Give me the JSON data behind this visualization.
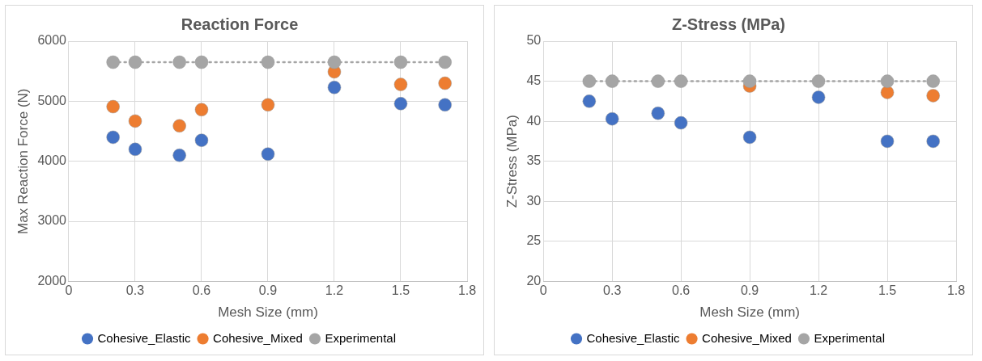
{
  "chart_data": [
    {
      "type": "scatter",
      "title": "Reaction Force",
      "xlabel": "Mesh Size (mm)",
      "ylabel": "Max Reaction Force (N)",
      "x": [
        0.2,
        0.3,
        0.5,
        0.6,
        0.9,
        1.2,
        1.5,
        1.7
      ],
      "xlim": [
        0,
        1.8
      ],
      "xticks": [
        0,
        0.3,
        0.6,
        0.9,
        1.2,
        1.5,
        1.8
      ],
      "ylim": [
        2000,
        6000
      ],
      "yticks": [
        2000,
        3000,
        4000,
        5000,
        6000
      ],
      "grid": true,
      "legend": "bottom",
      "marker": "circle",
      "series": [
        {
          "name": "Cohesive_Elastic",
          "color": "#4472c4",
          "values": [
            4400,
            4200,
            4100,
            4350,
            4120,
            5230,
            4960,
            4940
          ]
        },
        {
          "name": "Cohesive_Mixed",
          "color": "#ed7d31",
          "values": [
            4910,
            4670,
            4590,
            4860,
            4940,
            5490,
            5280,
            5300
          ]
        },
        {
          "name": "Experimental",
          "color": "#a5a5a5",
          "type": "line",
          "line_style": "dotted",
          "values": [
            5650,
            5650,
            5650,
            5650,
            5650,
            5650,
            5650,
            5650
          ]
        }
      ]
    },
    {
      "type": "scatter",
      "title": "Z-Stress (MPa)",
      "xlabel": "Mesh Size (mm)",
      "ylabel": "Z-Stress (MPa)",
      "x": [
        0.2,
        0.3,
        0.5,
        0.6,
        0.9,
        1.2,
        1.5,
        1.7
      ],
      "xlim": [
        0,
        1.8
      ],
      "xticks": [
        0,
        0.3,
        0.6,
        0.9,
        1.2,
        1.5,
        1.8
      ],
      "ylim": [
        20,
        50
      ],
      "yticks": [
        20,
        25,
        30,
        35,
        40,
        45,
        50
      ],
      "grid": true,
      "legend": "bottom",
      "marker": "circle",
      "series": [
        {
          "name": "Cohesive_Elastic",
          "color": "#4472c4",
          "values": [
            42.5,
            40.3,
            41.0,
            39.8,
            38.0,
            43.0,
            37.5,
            37.5
          ]
        },
        {
          "name": "Cohesive_Mixed",
          "color": "#ed7d31",
          "values": [
            null,
            null,
            null,
            null,
            44.4,
            null,
            43.6,
            43.2
          ]
        },
        {
          "name": "Experimental",
          "color": "#a5a5a5",
          "type": "line",
          "line_style": "dotted",
          "values": [
            45,
            45,
            45,
            45,
            45,
            45,
            45,
            45
          ]
        }
      ]
    }
  ]
}
